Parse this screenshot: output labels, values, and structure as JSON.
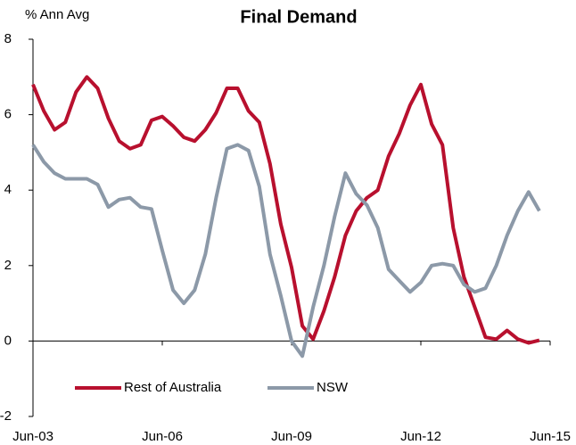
{
  "chart_data": {
    "type": "line",
    "title": "Final Demand",
    "y_axis_label": "% Ann Avg",
    "categories": [
      "Jun-03",
      null,
      null,
      null,
      null,
      null,
      null,
      null,
      null,
      null,
      null,
      null,
      "Jun-06",
      null,
      null,
      null,
      null,
      null,
      null,
      null,
      null,
      null,
      null,
      null,
      "Jun-09",
      null,
      null,
      null,
      null,
      null,
      null,
      null,
      null,
      null,
      null,
      null,
      "Jun-12",
      null,
      null,
      null,
      null,
      null,
      null,
      null,
      null,
      null,
      null,
      null,
      "Jun-15"
    ],
    "series": [
      {
        "name": "Rest of Australia",
        "color": "#b8102e",
        "values": [
          6.8,
          6.1,
          5.6,
          5.8,
          6.6,
          7.0,
          6.7,
          5.9,
          5.3,
          5.1,
          5.2,
          5.85,
          5.95,
          5.7,
          5.4,
          5.3,
          5.6,
          6.05,
          6.7,
          6.7,
          6.1,
          5.8,
          4.7,
          3.1,
          1.95,
          0.4,
          0.05,
          0.8,
          1.7,
          2.8,
          3.45,
          3.8,
          4.0,
          4.9,
          5.5,
          6.25,
          6.8,
          5.75,
          5.2,
          3.0,
          1.7,
          0.9,
          0.1,
          0.05,
          0.28,
          0.05,
          -0.05,
          0.02,
          null
        ]
      },
      {
        "name": "NSW",
        "color": "#8c99a8",
        "values": [
          5.2,
          4.75,
          4.45,
          4.3,
          4.3,
          4.3,
          4.15,
          3.55,
          3.75,
          3.8,
          3.55,
          3.5,
          2.4,
          1.35,
          1.0,
          1.35,
          2.3,
          3.8,
          5.1,
          5.2,
          5.05,
          4.1,
          2.3,
          1.2,
          0.0,
          -0.4,
          0.9,
          2.0,
          3.3,
          4.45,
          3.9,
          3.6,
          3.0,
          1.9,
          1.6,
          1.3,
          1.55,
          2.0,
          2.05,
          2.0,
          1.5,
          1.3,
          1.4,
          2.0,
          2.8,
          3.45,
          3.95,
          3.45,
          null
        ]
      }
    ],
    "ylim": [
      -2,
      8
    ],
    "yticks": [
      -2,
      0,
      2,
      4,
      6,
      8
    ],
    "grid": false,
    "legend": "bottom-left"
  }
}
